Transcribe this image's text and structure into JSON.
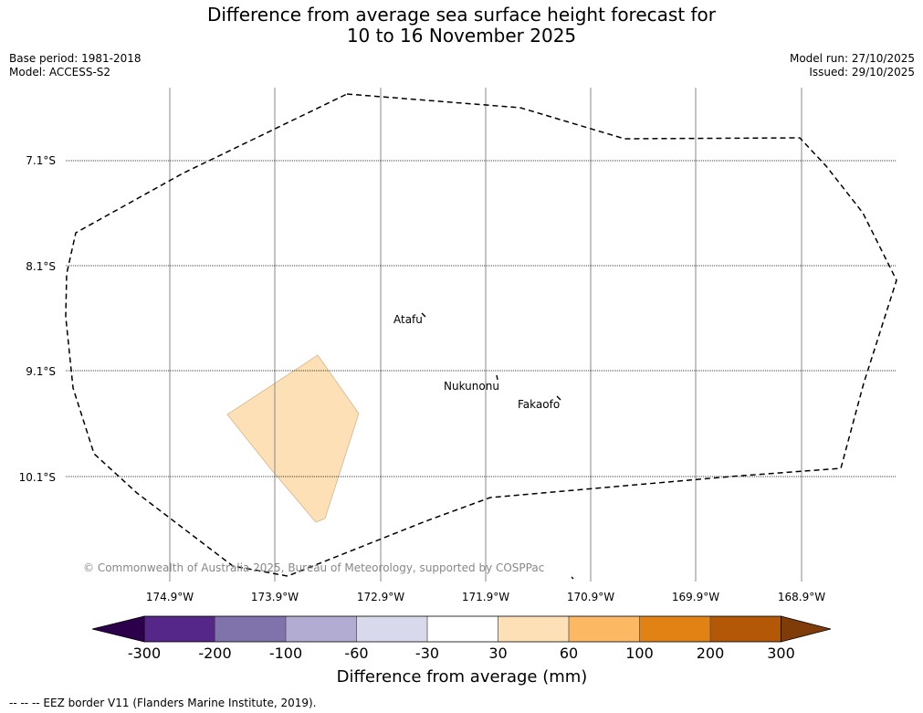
{
  "title_line1": "Difference from average sea surface height forecast for",
  "title_line2": "10 to 16 November 2025",
  "meta": {
    "base_period": "Base period: 1981-2018",
    "model": "Model: ACCESS-S2",
    "model_run": "Model run: 27/10/2025",
    "issued": "Issued: 29/10/2025"
  },
  "map": {
    "lat_labels": [
      "7.1°S",
      "8.1°S",
      "9.1°S",
      "10.1°S"
    ],
    "lon_labels": [
      "174.9°W",
      "173.9°W",
      "172.9°W",
      "171.9°W",
      "170.9°W",
      "169.9°W",
      "168.9°W"
    ],
    "places": [
      "Atafu",
      "Nukunonu",
      "Fakaofo"
    ],
    "credit": "© Commonwealth of Australia 2025, Bureau of Meteorology, supported by COSPPac",
    "anomaly_patch_class": "30 to 60 mm",
    "anomaly_patch_color": "#fde0b6"
  },
  "colorbar": {
    "title": "Difference from average (mm)",
    "ticks": [
      "-300",
      "-200",
      "-100",
      "-60",
      "-30",
      "30",
      "60",
      "100",
      "200",
      "300"
    ],
    "colors": [
      "#2d004b",
      "#542788",
      "#8073ac",
      "#b2abd2",
      "#d8daeb",
      "#ffffff",
      "#fee0b6",
      "#fdb863",
      "#e08214",
      "#b35806",
      "#7f3b08"
    ]
  },
  "footer": "--  --  -- EEZ border V11 (Flanders Marine Institute, 2019)."
}
